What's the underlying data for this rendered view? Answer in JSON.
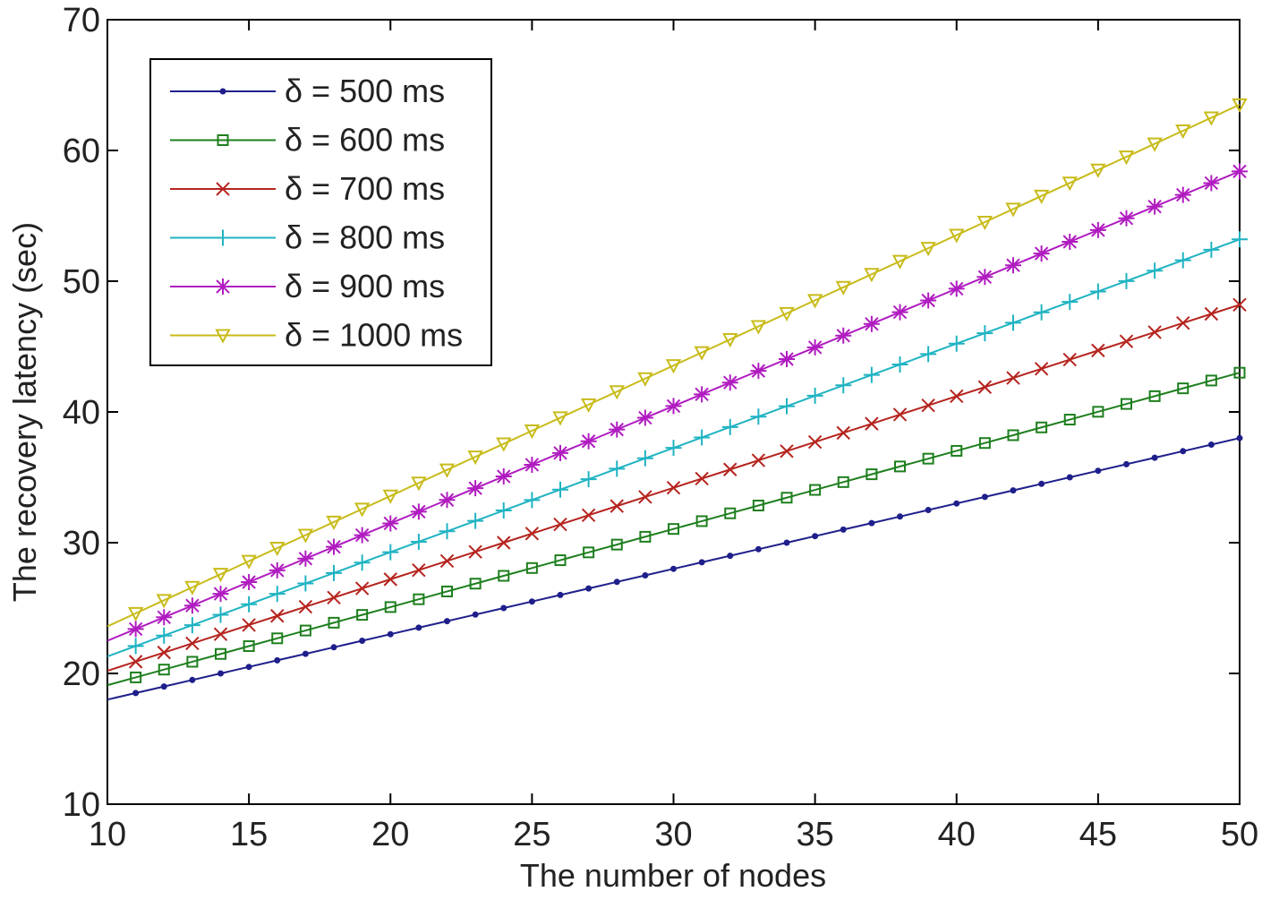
{
  "chart_data": {
    "type": "line",
    "title": "",
    "xlabel": "The number of nodes",
    "ylabel": "The recovery latency (sec)",
    "xlim": [
      10,
      50
    ],
    "ylim": [
      10,
      70
    ],
    "xticks": [
      10,
      15,
      20,
      25,
      30,
      35,
      40,
      45,
      50
    ],
    "yticks": [
      10,
      20,
      30,
      40,
      50,
      60,
      70
    ],
    "grid": false,
    "legend_position": "top-left",
    "x_start": 10,
    "x_end": 50,
    "x_step": 1,
    "series": [
      {
        "name": "δ = 500 ms",
        "color": "#1f1f8c",
        "marker": "dot",
        "start": 18.0,
        "end": 38.0
      },
      {
        "name": "δ = 600 ms",
        "color": "#1e7f1e",
        "marker": "square",
        "start": 19.1,
        "end": 43.0
      },
      {
        "name": "δ = 700 ms",
        "color": "#b5241e",
        "marker": "x",
        "start": 20.2,
        "end": 48.2
      },
      {
        "name": "δ = 800 ms",
        "color": "#1fb3c2",
        "marker": "plus",
        "start": 21.3,
        "end": 53.2
      },
      {
        "name": "δ = 900 ms",
        "color": "#b01cc0",
        "marker": "star",
        "start": 22.5,
        "end": 58.4
      },
      {
        "name": "δ = 1000 ms",
        "color": "#c8bb1a",
        "marker": "triangle",
        "start": 23.6,
        "end": 63.5
      }
    ]
  }
}
